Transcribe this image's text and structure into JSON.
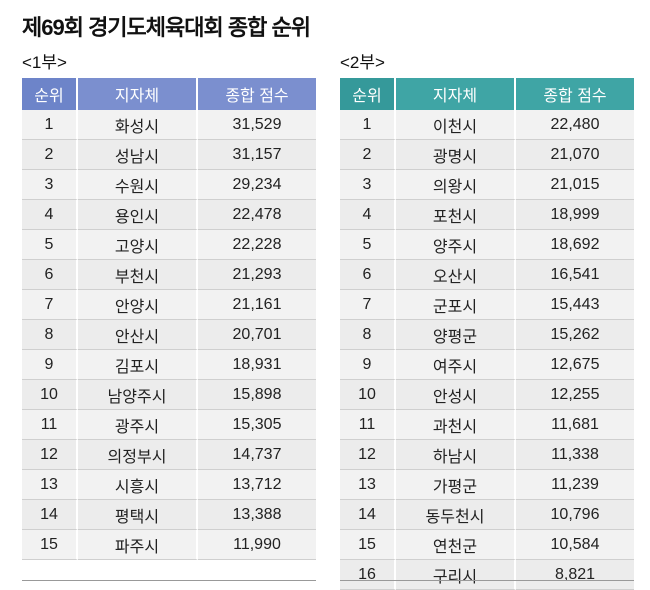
{
  "title": "제69회 경기도체육대회 종합 순위",
  "division1": {
    "label": "<1부>",
    "headers": [
      "순위",
      "지자체",
      "종합 점수"
    ],
    "rows": [
      [
        "1",
        "화성시",
        "31,529"
      ],
      [
        "2",
        "성남시",
        "31,157"
      ],
      [
        "3",
        "수원시",
        "29,234"
      ],
      [
        "4",
        "용인시",
        "22,478"
      ],
      [
        "5",
        "고양시",
        "22,228"
      ],
      [
        "6",
        "부천시",
        "21,293"
      ],
      [
        "7",
        "안양시",
        "21,161"
      ],
      [
        "8",
        "안산시",
        "20,701"
      ],
      [
        "9",
        "김포시",
        "18,931"
      ],
      [
        "10",
        "남양주시",
        "15,898"
      ],
      [
        "11",
        "광주시",
        "15,305"
      ],
      [
        "12",
        "의정부시",
        "14,737"
      ],
      [
        "13",
        "시흥시",
        "13,712"
      ],
      [
        "14",
        "평택시",
        "13,388"
      ],
      [
        "15",
        "파주시",
        "11,990"
      ]
    ]
  },
  "division2": {
    "label": "<2부>",
    "headers": [
      "순위",
      "지자체",
      "종합 점수"
    ],
    "rows": [
      [
        "1",
        "이천시",
        "22,480"
      ],
      [
        "2",
        "광명시",
        "21,070"
      ],
      [
        "3",
        "의왕시",
        "21,015"
      ],
      [
        "4",
        "포천시",
        "18,999"
      ],
      [
        "5",
        "양주시",
        "18,692"
      ],
      [
        "6",
        "오산시",
        "16,541"
      ],
      [
        "7",
        "군포시",
        "15,443"
      ],
      [
        "8",
        "양평군",
        "15,262"
      ],
      [
        "9",
        "여주시",
        "12,675"
      ],
      [
        "10",
        "안성시",
        "12,255"
      ],
      [
        "11",
        "과천시",
        "11,681"
      ],
      [
        "12",
        "하남시",
        "11,338"
      ],
      [
        "13",
        "가평군",
        "11,239"
      ],
      [
        "14",
        "동두천시",
        "10,796"
      ],
      [
        "15",
        "연천군",
        "10,584"
      ],
      [
        "16",
        "구리시",
        "8,821"
      ]
    ]
  },
  "colors": {
    "division1_header": "#7b8fcf",
    "division2_header": "#3fa5a5"
  }
}
